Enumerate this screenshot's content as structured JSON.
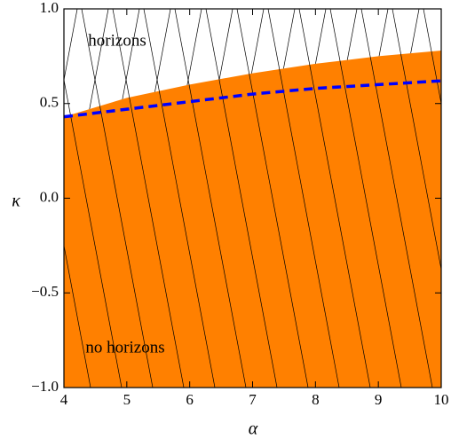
{
  "chart_data": {
    "type": "area",
    "x_label": "α",
    "y_label": "κ",
    "annotations": [
      "horizons",
      "no horizons"
    ],
    "x": [
      4,
      5,
      6,
      7,
      8,
      9,
      10
    ],
    "series": [
      {
        "color": "#ff8000",
        "values": [
          0.43,
          0.53,
          0.6,
          0.66,
          0.71,
          0.75,
          0.78
        ]
      },
      {
        "color": "#0000ff",
        "values": [
          0.43,
          0.47,
          0.51,
          0.55,
          0.58,
          0.6,
          0.62
        ],
        "dashed": true
      }
    ],
    "xlim": [
      4,
      10
    ],
    "ylim": [
      -1,
      1
    ],
    "xticks": [
      4,
      5,
      6,
      7,
      8,
      9,
      10
    ],
    "yticks": [
      {
        "value": -1,
        "label": "−1.0"
      },
      {
        "value": -0.5,
        "label": "−0.5"
      },
      {
        "value": 0,
        "label": "0.0"
      },
      {
        "value": 0.5,
        "label": "0.5"
      },
      {
        "value": 1,
        "label": "1.0"
      }
    ]
  }
}
